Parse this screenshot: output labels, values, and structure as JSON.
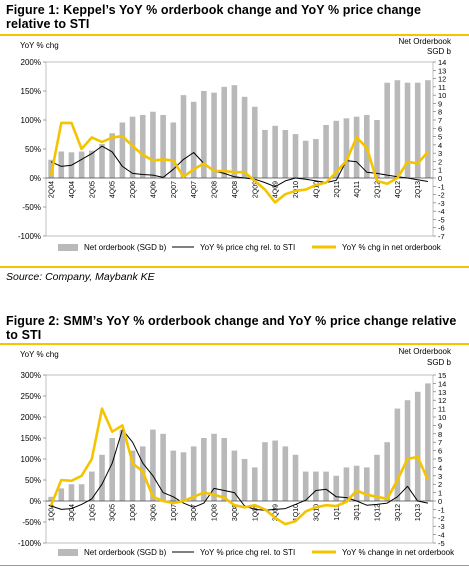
{
  "figures": [
    {
      "title": "Figure 1: Keppel’s YoY % orderbook change and YoY % price change relative to STI",
      "source": "Source: Company, Maybank KE"
    },
    {
      "title": "Figure 2: SMM’s YoY % orderbook change and YoY % price change relative to STI",
      "source": ""
    }
  ],
  "chart_data": [
    {
      "type": "bar",
      "ylabel_left": "YoY % chg",
      "ylabel_right": [
        "Net Orderbook",
        "SGD b"
      ],
      "ylim_left": [
        -100,
        200
      ],
      "yticks_left": [
        -100,
        -50,
        0,
        50,
        100,
        150,
        200
      ],
      "ylim_right": [
        -7,
        14
      ],
      "yticks_right": [
        -7,
        -6,
        -5,
        -4,
        -3,
        -2,
        -1,
        0,
        1,
        2,
        3,
        4,
        5,
        6,
        7,
        8,
        9,
        10,
        11,
        12,
        13,
        14
      ],
      "colors": {
        "bars": "#b9b9b9",
        "price": "#000000",
        "orderbook": "#f5c400"
      },
      "categories": [
        "2Q04",
        "3Q04",
        "4Q04",
        "1Q05",
        "2Q05",
        "3Q05",
        "4Q05",
        "1Q06",
        "2Q06",
        "3Q06",
        "4Q06",
        "1Q07",
        "2Q07",
        "3Q07",
        "4Q07",
        "1Q08",
        "2Q08",
        "3Q08",
        "4Q08",
        "1Q09",
        "2Q09",
        "3Q09",
        "4Q09",
        "1Q10",
        "2Q10",
        "3Q10",
        "4Q10",
        "1Q11",
        "2Q11",
        "3Q11",
        "4Q11",
        "1Q12",
        "2Q12",
        "3Q12",
        "4Q12",
        "1Q13",
        "2Q13",
        "3Q13"
      ],
      "xtick_labels": [
        "2Q04",
        "4Q04",
        "2Q05",
        "4Q05",
        "2Q06",
        "4Q06",
        "2Q07",
        "4Q07",
        "2Q08",
        "4Q08",
        "2Q09",
        "4Q09",
        "2Q10",
        "4Q10",
        "2Q11",
        "4Q11",
        "2Q12",
        "4Q12",
        "2Q13"
      ],
      "series": [
        {
          "name": "Net orderbook (SGD b)",
          "kind": "bar",
          "axis": "right",
          "values": [
            2.2,
            3.2,
            3.1,
            3.2,
            3.3,
            4.1,
            5.4,
            6.7,
            7.4,
            7.6,
            8.0,
            7.6,
            6.7,
            10.0,
            9.2,
            10.5,
            10.3,
            11.0,
            11.2,
            9.8,
            8.6,
            5.8,
            6.3,
            5.8,
            5.3,
            4.5,
            4.7,
            6.4,
            6.9,
            7.2,
            7.4,
            7.6,
            7.0,
            11.5,
            11.8,
            11.5,
            11.5,
            11.8
          ]
        },
        {
          "name": "YoY % price chg rel. to STI",
          "kind": "line",
          "axis": "left",
          "values": [
            28,
            20,
            22,
            32,
            42,
            55,
            45,
            20,
            8,
            6,
            5,
            1,
            15,
            32,
            44,
            25,
            12,
            8,
            2,
            0,
            -2,
            -8,
            -15,
            -5,
            0,
            -2,
            -5,
            -8,
            -4,
            30,
            28,
            10,
            8,
            5,
            2,
            0,
            -3,
            -6
          ]
        },
        {
          "name": "YoY % chg in net orderbook",
          "kind": "line",
          "axis": "left",
          "values": [
            5,
            95,
            95,
            50,
            70,
            62,
            70,
            72,
            55,
            40,
            30,
            32,
            30,
            2,
            15,
            25,
            12,
            12,
            10,
            10,
            -5,
            -20,
            -42,
            -28,
            -22,
            -20,
            -12,
            -8,
            10,
            30,
            70,
            52,
            -5,
            -10,
            0,
            28,
            25,
            45
          ]
        }
      ]
    },
    {
      "type": "bar",
      "ylabel_left": "YoY % chg",
      "ylabel_right": [
        "Net Orderbook",
        "SGD b"
      ],
      "ylim_left": [
        -100,
        300
      ],
      "yticks_left": [
        -100,
        -50,
        0,
        50,
        100,
        150,
        200,
        250,
        300
      ],
      "ylim_right": [
        -5,
        15
      ],
      "yticks_right": [
        -5,
        -4,
        -3,
        -2,
        -1,
        0,
        1,
        2,
        3,
        4,
        5,
        6,
        7,
        8,
        9,
        10,
        11,
        12,
        13,
        14,
        15
      ],
      "colors": {
        "bars": "#b9b9b9",
        "price": "#000000",
        "orderbook": "#f5c400"
      },
      "categories": [
        "1Q04",
        "2Q04",
        "3Q04",
        "4Q04",
        "1Q05",
        "2Q05",
        "3Q05",
        "4Q05",
        "1Q06",
        "2Q06",
        "3Q06",
        "4Q06",
        "1Q07",
        "2Q07",
        "3Q07",
        "4Q07",
        "1Q08",
        "2Q08",
        "3Q08",
        "4Q08",
        "1Q09",
        "2Q09",
        "3Q09",
        "4Q09",
        "1Q10",
        "2Q10",
        "3Q10",
        "4Q10",
        "1Q11",
        "2Q11",
        "3Q11",
        "4Q11",
        "1Q12",
        "2Q12",
        "3Q12",
        "4Q12",
        "1Q13",
        "2Q13"
      ],
      "xtick_labels": [
        "1Q04",
        "3Q04",
        "1Q05",
        "3Q05",
        "1Q06",
        "3Q06",
        "1Q07",
        "3Q07",
        "1Q08",
        "3Q08",
        "1Q09",
        "3Q09",
        "1Q10",
        "3Q10",
        "1Q11",
        "3Q11",
        "1Q12",
        "3Q12",
        "1Q13"
      ],
      "series": [
        {
          "name": "Net orderbook (SGD b)",
          "kind": "bar",
          "axis": "right",
          "values": [
            0.5,
            1.5,
            2.0,
            2.0,
            3.5,
            5.5,
            7.5,
            8.5,
            6.0,
            6.5,
            8.5,
            8.0,
            6.0,
            5.8,
            6.5,
            7.5,
            8.0,
            7.5,
            6.0,
            5.0,
            4.0,
            7.0,
            7.2,
            6.5,
            5.5,
            3.5,
            3.5,
            3.5,
            3.0,
            4.0,
            4.2,
            4.0,
            5.5,
            7.0,
            11.0,
            12.0,
            13.0,
            14.0
          ]
        },
        {
          "name": "YoY % price chg rel. to STI",
          "kind": "line",
          "axis": "left",
          "values": [
            -12,
            -20,
            -18,
            -8,
            5,
            40,
            90,
            170,
            140,
            90,
            60,
            20,
            10,
            -5,
            -15,
            -5,
            30,
            25,
            20,
            -12,
            -20,
            -22,
            -20,
            -18,
            -8,
            2,
            25,
            28,
            10,
            8,
            0,
            -10,
            -8,
            -5,
            10,
            35,
            0,
            -5
          ]
        },
        {
          "name": "YoY % change in net orderbook",
          "kind": "line",
          "axis": "left",
          "values": [
            -10,
            50,
            48,
            60,
            100,
            220,
            165,
            180,
            90,
            70,
            10,
            0,
            -5,
            0,
            10,
            20,
            15,
            8,
            -10,
            -15,
            -10,
            -20,
            -40,
            -55,
            -48,
            -25,
            -15,
            -10,
            -12,
            -2,
            25,
            15,
            10,
            5,
            50,
            100,
            105,
            50
          ]
        }
      ]
    }
  ],
  "legends": [
    [
      {
        "label": "Net orderbook (SGD b)",
        "kind": "bar"
      },
      {
        "label": "YoY % price chg rel. to STI",
        "kind": "black-line"
      },
      {
        "label": "YoY % chg in net orderbook",
        "kind": "yellow-line"
      }
    ],
    [
      {
        "label": "Net orderbook (SGD b)",
        "kind": "bar"
      },
      {
        "label": "YoY % price chg rel. to STI",
        "kind": "black-line"
      },
      {
        "label": "YoY %  change in net orderbook",
        "kind": "yellow-line"
      }
    ]
  ]
}
